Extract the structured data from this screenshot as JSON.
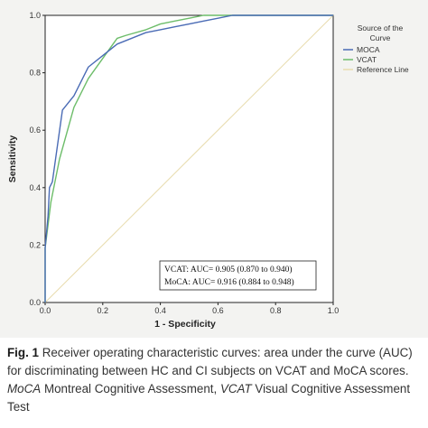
{
  "chart_data": {
    "type": "line",
    "xlabel": "1 - Specificity",
    "ylabel": "Sensitivity",
    "xlim": [
      0,
      1
    ],
    "ylim": [
      0,
      1
    ],
    "x_ticks": [
      "0.0",
      "0.2",
      "0.4",
      "0.6",
      "0.8",
      "1.0"
    ],
    "y_ticks": [
      "0.0",
      "0.2",
      "0.4",
      "0.6",
      "0.8",
      "1.0"
    ],
    "grid": false,
    "legend": {
      "title": "Source of the Curve",
      "placement": "right",
      "entries": [
        "MOCA",
        "VCAT",
        "Reference Line"
      ]
    },
    "series": [
      {
        "name": "MOCA",
        "color": "#4a6bb5",
        "x": [
          0.0,
          0.0,
          0.01,
          0.015,
          0.025,
          0.06,
          0.1,
          0.13,
          0.15,
          0.2,
          0.25,
          0.3,
          0.35,
          0.4,
          0.45,
          0.5,
          0.55,
          0.6,
          0.65,
          0.7,
          0.8,
          1.0
        ],
        "y": [
          0.0,
          0.19,
          0.3,
          0.4,
          0.42,
          0.67,
          0.72,
          0.78,
          0.82,
          0.86,
          0.9,
          0.92,
          0.94,
          0.95,
          0.96,
          0.97,
          0.98,
          0.99,
          1.0,
          1.0,
          1.0,
          1.0
        ]
      },
      {
        "name": "VCAT",
        "color": "#6dbd6a",
        "x": [
          0.0,
          0.0,
          0.02,
          0.05,
          0.1,
          0.15,
          0.2,
          0.25,
          0.28,
          0.35,
          0.4,
          0.45,
          0.5,
          0.55,
          0.6,
          0.65,
          0.7,
          1.0
        ],
        "y": [
          0.0,
          0.19,
          0.35,
          0.5,
          0.68,
          0.78,
          0.85,
          0.92,
          0.93,
          0.95,
          0.97,
          0.98,
          0.99,
          1.0,
          1.0,
          1.0,
          1.0,
          1.0
        ]
      },
      {
        "name": "Reference Line",
        "color": "#e8dcae",
        "x": [
          0,
          1
        ],
        "y": [
          0,
          1
        ]
      }
    ],
    "annotations": [
      "VCAT: AUC= 0.905 (0.870 to 0.940)",
      "MoCA: AUC= 0.916 (0.884 to 0.948)"
    ]
  },
  "caption": {
    "label": "Fig. 1",
    "text1": " Receiver operating characteristic curves: area under the curve (AUC) for discriminating between HC and CI subjects on VCAT and MoCA scores. ",
    "abbr1": "MoCA",
    "text2": " Montreal Cognitive Assessment, ",
    "abbr2": "VCAT",
    "text3": " Visual Cognitive Assessment Test"
  }
}
